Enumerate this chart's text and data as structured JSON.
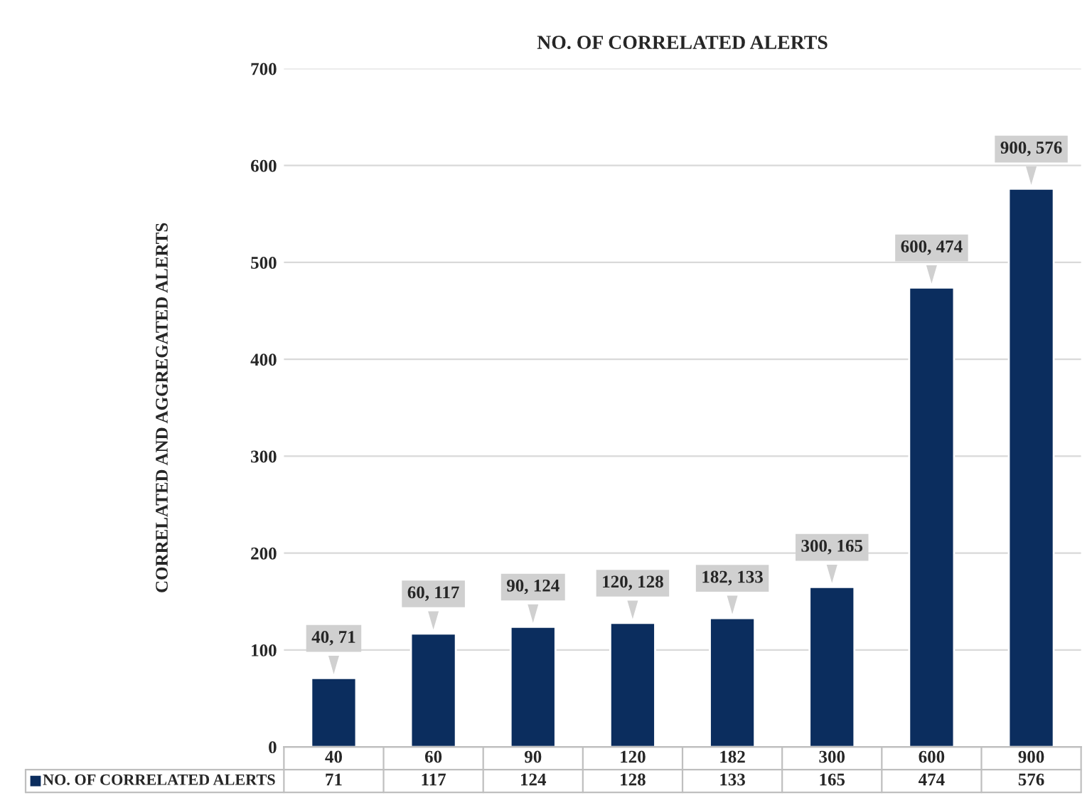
{
  "chart_data": {
    "type": "bar",
    "title": "NO. OF CORRELATED ALERTS",
    "ylabel": "CORRELATED AND AGGREGATED ALERTS",
    "categories": [
      "40",
      "60",
      "90",
      "120",
      "182",
      "300",
      "600",
      "900"
    ],
    "series": [
      {
        "name": "NO. OF CORRELATED ALERTS",
        "color": "#0b2d5e",
        "values": [
          71,
          117,
          124,
          128,
          133,
          165,
          474,
          576
        ]
      }
    ],
    "annotations": [
      {
        "text": "40, 71",
        "x": "40",
        "y": 71
      },
      {
        "text": "60, 117",
        "x": "60",
        "y": 117
      },
      {
        "text": "90, 124",
        "x": "90",
        "y": 124
      },
      {
        "text": "120, 128",
        "x": "120",
        "y": 128
      },
      {
        "text": "182, 133",
        "x": "182",
        "y": 133
      },
      {
        "text": "300, 165",
        "x": "300",
        "y": 165
      },
      {
        "text": "600, 474",
        "x": "600",
        "y": 474
      },
      {
        "text": "900, 576",
        "x": "900",
        "y": 576
      }
    ],
    "ylim": [
      0,
      700
    ],
    "yticks": [
      0,
      100,
      200,
      300,
      400,
      500,
      600,
      700
    ],
    "grid": "y",
    "data_labels": true
  }
}
